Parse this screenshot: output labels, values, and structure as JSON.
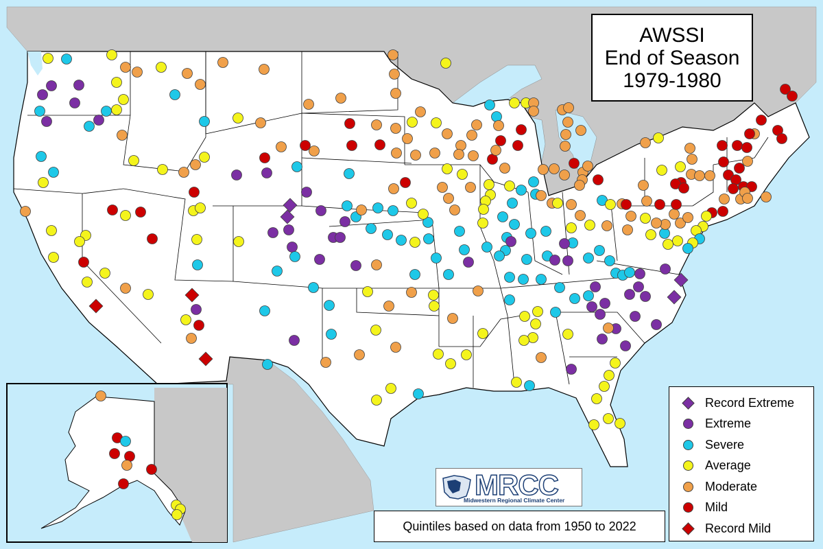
{
  "title": {
    "line1": "AWSSI",
    "line2": "End of Season",
    "line3": "1979-1980"
  },
  "legend": {
    "items": [
      {
        "label": "Record Extreme",
        "shape": "diamond",
        "color": "#7b2fa3"
      },
      {
        "label": "Extreme",
        "shape": "circle",
        "color": "#7b2fa3"
      },
      {
        "label": "Severe",
        "shape": "circle",
        "color": "#1ec8e8"
      },
      {
        "label": "Average",
        "shape": "circle",
        "color": "#f4f41c"
      },
      {
        "label": "Moderate",
        "shape": "circle",
        "color": "#f0a04a"
      },
      {
        "label": "Mild",
        "shape": "circle",
        "color": "#cc0000"
      },
      {
        "label": "Record Mild",
        "shape": "diamond",
        "color": "#cc0000"
      }
    ]
  },
  "footnote": "Quintiles based on data from 1950 to 2022",
  "logo": {
    "main": "MRCC",
    "sub": "Midwestern Regional Climate Center"
  },
  "colors": {
    "water": "#c6ecfb",
    "land_foreign": "#c8c8c8",
    "land_us": "#ffffff",
    "record_extreme": "#7b2fa3",
    "extreme": "#7b2fa3",
    "severe": "#1ec8e8",
    "average": "#f4f41c",
    "moderate": "#f0a04a",
    "mild": "#cc0000",
    "record_mild": "#cc0000"
  }
}
